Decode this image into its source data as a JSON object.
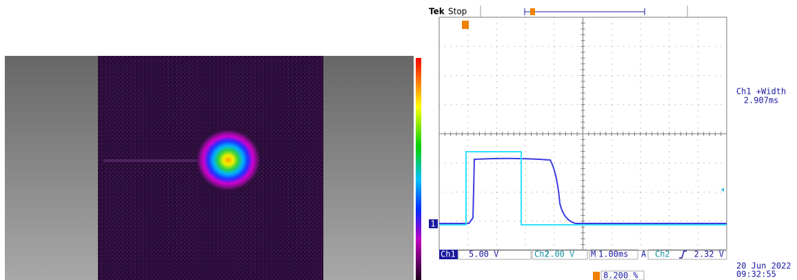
{
  "scope": {
    "brand": "Tek",
    "status": "Stop",
    "channel_marker": "1",
    "measurement": {
      "label": "Ch1 +Width",
      "value": "2.907ms"
    },
    "status_bar": {
      "ch1": "Ch1",
      "ch1_scale": "5.00 V",
      "ch2": "Ch2",
      "ch2_scale": "2.00 V",
      "timebase_prefix": "M",
      "timebase": "1.00ms",
      "trigger": "A",
      "trigger_source": "Ch2",
      "trigger_level": "2.32 V",
      "trigger_position": "8.200 %"
    },
    "date": "20 Jun 2022",
    "time": "09:32:55"
  }
}
